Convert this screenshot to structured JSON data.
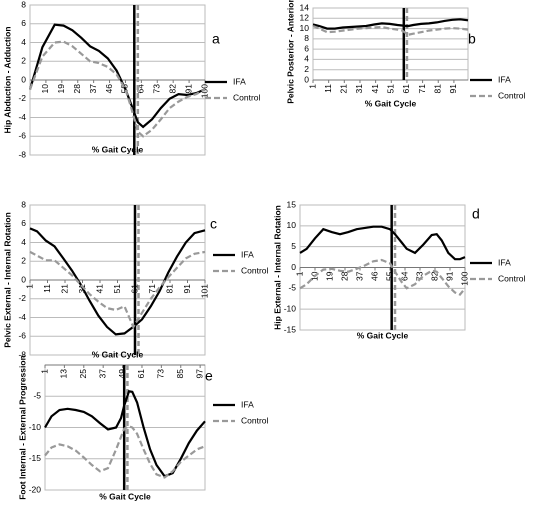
{
  "chart_data": [
    {
      "type": "line",
      "label": "a",
      "ylabel": "Hip Abduction - Adduction",
      "xlabel": "% Gait Cycle",
      "legend": "right",
      "grid": true,
      "x": [
        1,
        8,
        15,
        20,
        25,
        30,
        35,
        40,
        45,
        50,
        55,
        58,
        62,
        65,
        70,
        75,
        80,
        85,
        90,
        95,
        100
      ],
      "xlim": [
        1,
        100
      ],
      "xticks": [
        10,
        19,
        28,
        37,
        46,
        55,
        64,
        73,
        82,
        91,
        100
      ],
      "ylim": [
        -8,
        8
      ],
      "yticks": [
        -8,
        -6,
        -4,
        -2,
        0,
        2,
        4,
        6,
        8
      ],
      "markers": [
        {
          "x": 60,
          "color": "#000000",
          "dashed": false
        },
        {
          "x": 62,
          "color": "#999999",
          "dashed": true
        }
      ],
      "series": [
        {
          "name": "IFA",
          "color": "#000000",
          "dashed": false,
          "values": [
            -1,
            3.5,
            5.9,
            5.8,
            5.3,
            4.5,
            3.6,
            3.1,
            2.3,
            1.0,
            -1.0,
            -2.5,
            -4.5,
            -5.0,
            -4.2,
            -3.0,
            -2.0,
            -1.5,
            -1.6,
            -1.4,
            -1.0
          ]
        },
        {
          "name": "Control",
          "color": "#999999",
          "dashed": true,
          "values": [
            -1,
            2.5,
            4.0,
            4.1,
            3.6,
            2.8,
            2.0,
            1.8,
            1.4,
            0.6,
            -1.0,
            -2.8,
            -5.5,
            -6.0,
            -5.3,
            -4.2,
            -3.0,
            -2.3,
            -1.8,
            -1.5,
            -1.0
          ]
        }
      ]
    },
    {
      "type": "line",
      "label": "b",
      "ylabel": "Pelvic  Posterior - Anterior Tilt",
      "xlabel": "% Gait Cycle",
      "legend": "right",
      "grid": true,
      "x": [
        1,
        5,
        10,
        15,
        20,
        25,
        30,
        35,
        40,
        45,
        50,
        55,
        58,
        60,
        62,
        65,
        70,
        75,
        80,
        85,
        90,
        95,
        100
      ],
      "xlim": [
        1,
        100
      ],
      "xticks": [
        1,
        11,
        21,
        31,
        41,
        51,
        61,
        71,
        81,
        91
      ],
      "ylim": [
        0,
        14
      ],
      "yticks": [
        0,
        2,
        4,
        6,
        8,
        10,
        12,
        14
      ],
      "markers": [
        {
          "x": 59,
          "color": "#000000",
          "dashed": false
        },
        {
          "x": 61,
          "color": "#999999",
          "dashed": true
        }
      ],
      "series": [
        {
          "name": "IFA",
          "color": "#000000",
          "dashed": false,
          "values": [
            10.8,
            10.5,
            10.0,
            10.0,
            10.2,
            10.3,
            10.4,
            10.5,
            10.8,
            11.0,
            10.9,
            10.7,
            10.6,
            10.5,
            10.5,
            10.7,
            10.9,
            11.0,
            11.2,
            11.5,
            11.7,
            11.8,
            11.6
          ]
        },
        {
          "name": "Control",
          "color": "#999999",
          "dashed": true,
          "values": [
            10.5,
            10.0,
            9.3,
            9.4,
            9.6,
            9.8,
            10.0,
            10.1,
            10.2,
            10.3,
            10.0,
            9.8,
            9.6,
            9.2,
            8.8,
            9.0,
            9.3,
            9.6,
            9.8,
            10.0,
            10.1,
            10.0,
            9.8
          ]
        }
      ]
    },
    {
      "type": "line",
      "label": "c",
      "ylabel": "Pelvic External - Internal Rotation",
      "xlabel": "% Gait Cycle",
      "legend": "right",
      "grid": true,
      "x": [
        1,
        5,
        10,
        15,
        20,
        25,
        30,
        35,
        40,
        45,
        50,
        55,
        60,
        65,
        70,
        75,
        80,
        85,
        90,
        95,
        101
      ],
      "xlim": [
        1,
        101
      ],
      "xticks": [
        1,
        11,
        21,
        31,
        41,
        51,
        61,
        71,
        81,
        91,
        101
      ],
      "ylim": [
        -8,
        8
      ],
      "yticks": [
        -8,
        -6,
        -4,
        -2,
        0,
        2,
        4,
        6,
        8
      ],
      "markers": [
        {
          "x": 61,
          "color": "#000000",
          "dashed": false
        },
        {
          "x": 63,
          "color": "#999999",
          "dashed": true
        }
      ],
      "series": [
        {
          "name": "IFA",
          "color": "#000000",
          "dashed": false,
          "values": [
            5.5,
            5.2,
            4.2,
            3.6,
            2.3,
            1.0,
            -0.5,
            -2.2,
            -3.8,
            -5.0,
            -5.8,
            -5.7,
            -5.0,
            -4.2,
            -2.8,
            -1.2,
            0.8,
            2.5,
            4.0,
            5.0,
            5.3
          ]
        },
        {
          "name": "Control",
          "color": "#999999",
          "dashed": true,
          "values": [
            3.0,
            2.6,
            2.1,
            2.1,
            1.3,
            0.5,
            -0.5,
            -1.5,
            -2.3,
            -3.0,
            -3.2,
            -2.8,
            -5.0,
            -3.5,
            -2.0,
            -0.8,
            0.3,
            1.3,
            2.3,
            2.8,
            3.0
          ]
        }
      ]
    },
    {
      "type": "line",
      "label": "d",
      "ylabel": "Hip External - Internal Rotation",
      "xlabel": "% Gait Cycle",
      "legend": "right",
      "grid": true,
      "x": [
        1,
        5,
        10,
        15,
        20,
        25,
        30,
        35,
        40,
        45,
        50,
        55,
        58,
        62,
        65,
        70,
        75,
        80,
        83,
        86,
        90,
        94,
        97,
        100
      ],
      "xlim": [
        1,
        100
      ],
      "xticks": [
        1,
        10,
        19,
        28,
        37,
        46,
        55,
        64,
        73,
        82,
        91,
        100
      ],
      "ylim": [
        -15,
        15
      ],
      "yticks": [
        -15,
        -10,
        -5,
        0,
        5,
        10,
        15
      ],
      "markers": [
        {
          "x": 56,
          "color": "#000000",
          "dashed": false
        },
        {
          "x": 58,
          "color": "#999999",
          "dashed": true
        }
      ],
      "series": [
        {
          "name": "IFA",
          "color": "#000000",
          "dashed": false,
          "values": [
            3.5,
            4.5,
            7.0,
            9.2,
            8.5,
            8.0,
            8.5,
            9.2,
            9.5,
            9.8,
            9.8,
            9.2,
            8.0,
            6.0,
            4.5,
            3.5,
            5.5,
            7.8,
            8.0,
            6.5,
            3.5,
            2.0,
            2.0,
            2.5
          ]
        },
        {
          "name": "Control",
          "color": "#999999",
          "dashed": true,
          "values": [
            -5.0,
            -4.0,
            -2.0,
            -0.5,
            -0.3,
            -0.8,
            -1.0,
            -0.3,
            0.5,
            1.5,
            1.8,
            1.0,
            -1.0,
            -3.5,
            -5.0,
            -4.0,
            -2.0,
            -0.8,
            -1.0,
            -2.5,
            -4.5,
            -6.0,
            -6.5,
            -5.0
          ]
        }
      ]
    },
    {
      "type": "line",
      "label": "e",
      "ylabel": "Foot Internal - External Progression",
      "xlabel": "% Gait Cycle",
      "legend": "right",
      "grid": true,
      "x": [
        1,
        5,
        10,
        15,
        20,
        25,
        30,
        35,
        40,
        45,
        48,
        50,
        53,
        55,
        58,
        62,
        66,
        70,
        75,
        80,
        85,
        90,
        95,
        100
      ],
      "xlim": [
        1,
        100
      ],
      "xticks": [
        1,
        13,
        25,
        37,
        49,
        61,
        73,
        85,
        97
      ],
      "ylim": [
        -20,
        0
      ],
      "yticks": [
        -20,
        -15,
        -10,
        -5
      ],
      "markers": [
        {
          "x": 50,
          "color": "#000000",
          "dashed": false
        },
        {
          "x": 52,
          "color": "#999999",
          "dashed": true
        }
      ],
      "series": [
        {
          "name": "IFA",
          "color": "#000000",
          "dashed": false,
          "values": [
            -10,
            -8.2,
            -7.2,
            -7.0,
            -7.2,
            -7.5,
            -8.2,
            -9.3,
            -10.3,
            -10.0,
            -8.5,
            -6.5,
            -4.2,
            -4.3,
            -6.0,
            -10.0,
            -13.5,
            -16.0,
            -17.8,
            -17.3,
            -15.0,
            -12.5,
            -10.5,
            -9.0
          ]
        },
        {
          "name": "Control",
          "color": "#999999",
          "dashed": true,
          "values": [
            -14.5,
            -13.2,
            -12.7,
            -13.0,
            -13.7,
            -14.8,
            -16.0,
            -17.0,
            -16.5,
            -13.5,
            -11.5,
            -10.2,
            -9.8,
            -10.0,
            -11.0,
            -13.5,
            -15.8,
            -17.5,
            -18.0,
            -17.0,
            -15.5,
            -14.5,
            -13.5,
            -13.0
          ]
        }
      ]
    }
  ]
}
